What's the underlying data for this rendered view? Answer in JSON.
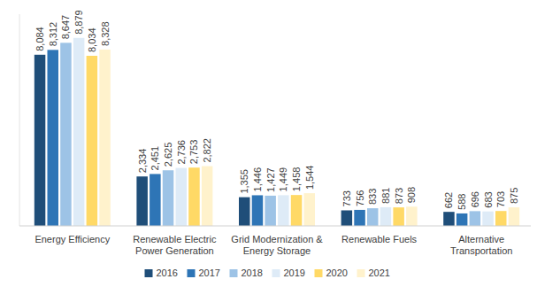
{
  "chart_data": {
    "type": "bar",
    "categories": [
      "Energy Efficiency",
      "Renewable Electric Power Generation",
      "Grid Modernization & Energy Storage",
      "Renewable Fuels",
      "Alternative Transportation"
    ],
    "series": [
      {
        "name": "2016",
        "color": "#1f4e79",
        "values": [
          8084,
          2334,
          1355,
          733,
          662
        ],
        "value_labels": [
          "8,084",
          "2,334",
          "1,355",
          "733",
          "662"
        ]
      },
      {
        "name": "2017",
        "color": "#2e75b6",
        "values": [
          8312,
          2451,
          1446,
          756,
          588
        ],
        "value_labels": [
          "8,312",
          "2,451",
          "1,446",
          "756",
          "588"
        ]
      },
      {
        "name": "2018",
        "color": "#9dc3e6",
        "values": [
          8647,
          2625,
          1427,
          833,
          696
        ],
        "value_labels": [
          "8,647",
          "2,625",
          "1,427",
          "833",
          "696"
        ]
      },
      {
        "name": "2019",
        "color": "#deebf7",
        "values": [
          8879,
          2736,
          1449,
          881,
          683
        ],
        "value_labels": [
          "8,879",
          "2,736",
          "1,449",
          "881",
          "683"
        ]
      },
      {
        "name": "2020",
        "color": "#ffd966",
        "values": [
          8034,
          2753,
          1458,
          873,
          703
        ],
        "value_labels": [
          "8,034",
          "2,753",
          "1,458",
          "873",
          "703"
        ]
      },
      {
        "name": "2021",
        "color": "#fff2cc",
        "values": [
          8328,
          2822,
          1544,
          908,
          875
        ],
        "value_labels": [
          "8,328",
          "2,822",
          "1,544",
          "908",
          "875"
        ]
      }
    ],
    "ylim": [
      0,
      10000
    ],
    "data_labels": true,
    "tick_labels": "x",
    "legend": "bottom",
    "grid": false
  }
}
